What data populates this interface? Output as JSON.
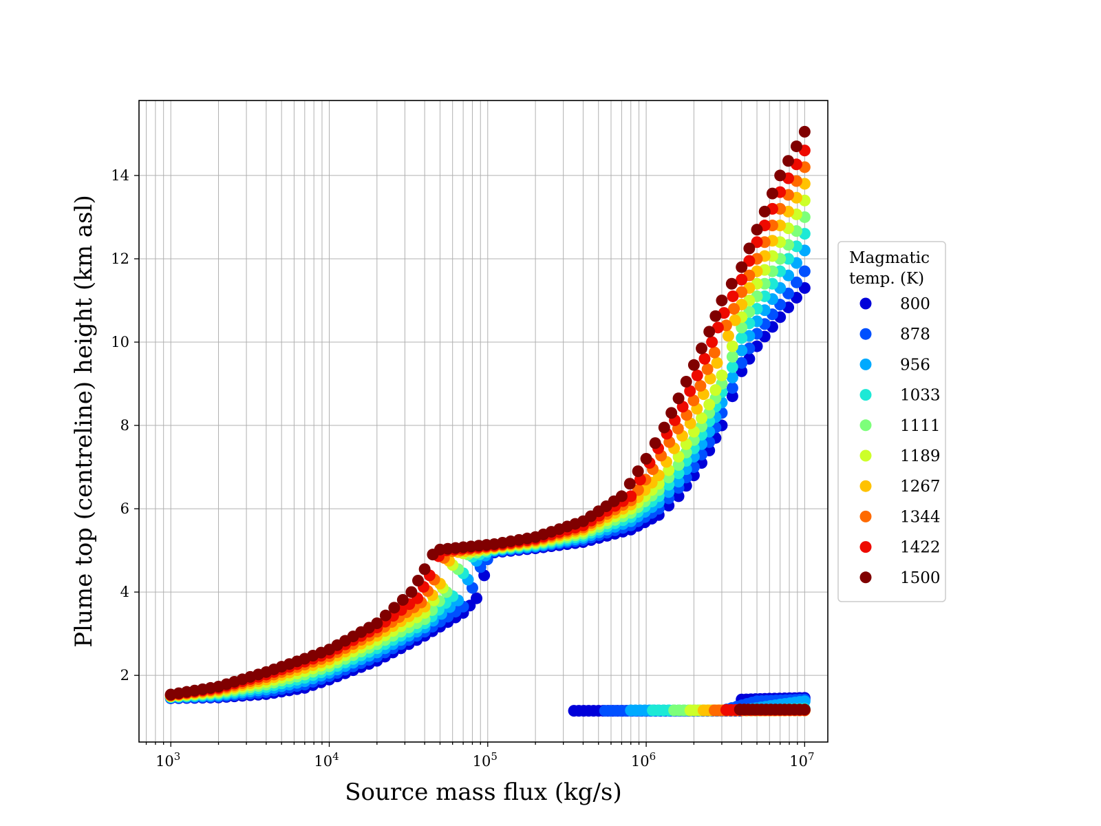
{
  "chart_data": {
    "type": "scatter",
    "title": "",
    "xlabel": "Source mass flux (kg/s)",
    "ylabel": "Plume top (centreline) height (km asl)",
    "xscale": "log",
    "xlim": [
      630,
      14000000
    ],
    "ylim": [
      0.4,
      15.8
    ],
    "xticks": [
      {
        "value": 1000,
        "base": "10",
        "exp": "3"
      },
      {
        "value": 10000,
        "base": "10",
        "exp": "4"
      },
      {
        "value": 100000,
        "base": "10",
        "exp": "5"
      },
      {
        "value": 1000000,
        "base": "10",
        "exp": "6"
      },
      {
        "value": 10000000,
        "base": "10",
        "exp": "7"
      }
    ],
    "yticks": [
      2,
      4,
      6,
      8,
      10,
      12,
      14
    ],
    "grid": true,
    "legend": {
      "title_lines": [
        "Magmatic",
        "temp. (K)"
      ],
      "placement": "outside-right"
    },
    "series": [
      {
        "name": "800",
        "color": "#0000d9",
        "x": [
          1000,
          2000,
          4000,
          7000,
          10000,
          20000,
          40000,
          70000,
          85000,
          95000,
          110000,
          200000,
          400000,
          800000,
          1200000,
          1600000,
          2000000,
          2500000,
          3000000,
          3500000,
          4000000,
          5000000,
          7000000,
          10000000
        ],
        "y": [
          1.45,
          1.47,
          1.55,
          1.7,
          1.9,
          2.35,
          2.95,
          3.5,
          3.85,
          4.4,
          4.95,
          5.05,
          5.2,
          5.5,
          5.85,
          6.3,
          6.8,
          7.4,
          8.0,
          8.7,
          9.3,
          9.9,
          10.6,
          11.3
        ]
      },
      {
        "name": "878",
        "color": "#0050ff",
        "x": [
          1000,
          2000,
          4000,
          7000,
          10000,
          20000,
          40000,
          70000,
          80000,
          90000,
          110000,
          200000,
          400000,
          800000,
          1200000,
          1600000,
          2000000,
          2500000,
          3000000,
          3500000,
          4000000,
          5000000,
          7000000,
          10000000
        ],
        "y": [
          1.46,
          1.49,
          1.6,
          1.78,
          1.98,
          2.45,
          3.05,
          3.65,
          4.1,
          4.6,
          4.97,
          5.08,
          5.25,
          5.6,
          6.0,
          6.5,
          7.0,
          7.6,
          8.3,
          8.9,
          9.5,
          10.2,
          10.9,
          11.7
        ]
      },
      {
        "name": "956",
        "color": "#00aaff",
        "x": [
          1000,
          2000,
          4000,
          7000,
          10000,
          20000,
          40000,
          65000,
          75000,
          85000,
          110000,
          200000,
          400000,
          800000,
          1200000,
          1600000,
          2000000,
          2500000,
          3000000,
          3500000,
          4000000,
          5000000,
          7000000,
          10000000
        ],
        "y": [
          1.47,
          1.52,
          1.66,
          1.86,
          2.06,
          2.55,
          3.15,
          3.8,
          4.3,
          4.75,
          5.0,
          5.1,
          5.3,
          5.7,
          6.15,
          6.65,
          7.25,
          7.85,
          8.55,
          9.15,
          9.8,
          10.5,
          11.3,
          12.2
        ]
      },
      {
        "name": "1033",
        "color": "#1de9d6",
        "x": [
          1000,
          2000,
          4000,
          7000,
          10000,
          20000,
          40000,
          60000,
          70000,
          80000,
          110000,
          200000,
          400000,
          800000,
          1200000,
          1600000,
          2000000,
          2500000,
          3000000,
          3500000,
          4000000,
          5000000,
          7000000,
          10000000
        ],
        "y": [
          1.48,
          1.55,
          1.72,
          1.94,
          2.14,
          2.65,
          3.25,
          3.9,
          4.45,
          4.85,
          5.02,
          5.13,
          5.35,
          5.8,
          6.3,
          6.85,
          7.45,
          8.1,
          8.8,
          9.4,
          10.1,
          10.8,
          11.7,
          12.6
        ]
      },
      {
        "name": "1111",
        "color": "#7dff7a",
        "x": [
          1000,
          2000,
          4000,
          7000,
          10000,
          20000,
          40000,
          55000,
          65000,
          75000,
          110000,
          200000,
          400000,
          800000,
          1200000,
          1600000,
          2000000,
          2500000,
          3000000,
          3500000,
          4000000,
          5000000,
          7000000,
          10000000
        ],
        "y": [
          1.49,
          1.58,
          1.78,
          2.02,
          2.22,
          2.75,
          3.35,
          4.0,
          4.55,
          4.9,
          5.04,
          5.16,
          5.4,
          5.9,
          6.45,
          7.05,
          7.65,
          8.3,
          9.0,
          9.65,
          10.35,
          11.1,
          12.0,
          13.0
        ]
      },
      {
        "name": "1189",
        "color": "#cdff29",
        "x": [
          1000,
          2000,
          4000,
          7000,
          10000,
          20000,
          40000,
          52000,
          60000,
          70000,
          110000,
          200000,
          400000,
          800000,
          1200000,
          1600000,
          2000000,
          2500000,
          3000000,
          3500000,
          4000000,
          5000000,
          7000000,
          10000000
        ],
        "y": [
          1.5,
          1.61,
          1.84,
          2.1,
          2.3,
          2.85,
          3.5,
          4.1,
          4.65,
          4.93,
          5.06,
          5.19,
          5.45,
          6.0,
          6.6,
          7.25,
          7.85,
          8.5,
          9.2,
          9.9,
          10.6,
          11.4,
          12.4,
          13.4
        ]
      },
      {
        "name": "1267",
        "color": "#ffc200",
        "x": [
          1000,
          2000,
          4000,
          7000,
          10000,
          20000,
          40000,
          50000,
          57000,
          65000,
          110000,
          200000,
          400000,
          800000,
          1200000,
          1500000,
          1900000,
          2300000,
          2800000,
          3300000,
          4000000,
          5000000,
          7000000,
          10000000
        ],
        "y": [
          1.51,
          1.64,
          1.9,
          2.18,
          2.38,
          2.95,
          3.65,
          4.2,
          4.75,
          4.96,
          5.08,
          5.22,
          5.5,
          6.1,
          6.8,
          7.45,
          8.05,
          8.75,
          9.5,
          10.15,
          10.9,
          11.7,
          12.8,
          13.8
        ]
      },
      {
        "name": "1344",
        "color": "#ff6a00",
        "x": [
          1000,
          2000,
          4000,
          7000,
          10000,
          20000,
          38000,
          46000,
          53000,
          60000,
          110000,
          200000,
          400000,
          800000,
          1100000,
          1400000,
          1800000,
          2200000,
          2700000,
          3200000,
          4000000,
          5000000,
          7000000,
          10000000
        ],
        "y": [
          1.52,
          1.67,
          1.96,
          2.26,
          2.46,
          3.05,
          3.75,
          4.3,
          4.82,
          4.98,
          5.1,
          5.25,
          5.55,
          6.2,
          6.95,
          7.6,
          8.25,
          8.95,
          9.75,
          10.4,
          11.2,
          12.0,
          13.2,
          14.2
        ]
      },
      {
        "name": "1422",
        "color": "#ee0a00",
        "x": [
          1000,
          2000,
          4000,
          7000,
          10000,
          20000,
          36000,
          43000,
          49000,
          55000,
          110000,
          200000,
          400000,
          800000,
          1050000,
          1350000,
          1700000,
          2100000,
          2600000,
          3100000,
          4000000,
          5000000,
          7000000,
          10000000
        ],
        "y": [
          1.53,
          1.7,
          2.02,
          2.33,
          2.54,
          3.15,
          3.85,
          4.4,
          4.86,
          5.0,
          5.12,
          5.28,
          5.6,
          6.3,
          7.1,
          7.8,
          8.45,
          9.2,
          10.0,
          10.7,
          11.5,
          12.4,
          13.6,
          14.6
        ]
      },
      {
        "name": "1500",
        "color": "#800000",
        "x": [
          1000,
          2000,
          4000,
          7000,
          10000,
          20000,
          33000,
          40000,
          45000,
          50000,
          110000,
          200000,
          400000,
          700000,
          1000000,
          1300000,
          1600000,
          2000000,
          2500000,
          3000000,
          4000000,
          5000000,
          7000000,
          10000000
        ],
        "y": [
          1.54,
          1.73,
          2.08,
          2.4,
          2.62,
          3.25,
          4.0,
          4.55,
          4.9,
          5.02,
          5.15,
          5.32,
          5.7,
          6.3,
          7.2,
          7.95,
          8.65,
          9.45,
          10.25,
          11.0,
          11.8,
          12.7,
          14.0,
          15.05
        ]
      }
    ],
    "lower_branch": [
      {
        "series": "800",
        "x": [
          350000,
          500000,
          1000000,
          2000000,
          3900000,
          4000000,
          6000000,
          10000000
        ],
        "y": [
          1.15,
          1.15,
          1.15,
          1.15,
          1.15,
          1.42,
          1.44,
          1.46
        ]
      },
      {
        "series": "878",
        "x": [
          550000,
          800000,
          1500000,
          3000000,
          5000000,
          10000000
        ],
        "y": [
          1.15,
          1.15,
          1.15,
          1.15,
          1.38,
          1.42
        ]
      },
      {
        "series": "956",
        "x": [
          800000,
          1200000,
          2000000,
          4000000,
          7000000,
          10000000
        ],
        "y": [
          1.16,
          1.16,
          1.16,
          1.16,
          1.3,
          1.38
        ]
      },
      {
        "series": "1033",
        "x": [
          1100000,
          1500000,
          2500000,
          5000000,
          10000000
        ],
        "y": [
          1.16,
          1.16,
          1.16,
          1.16,
          1.2
        ]
      },
      {
        "series": "1111",
        "x": [
          1500000,
          2000000,
          3000000,
          6000000,
          10000000
        ],
        "y": [
          1.16,
          1.16,
          1.16,
          1.16,
          1.16
        ]
      },
      {
        "series": "1189",
        "x": [
          1900000,
          2500000,
          4000000,
          7000000,
          10000000
        ],
        "y": [
          1.16,
          1.16,
          1.16,
          1.16,
          1.16
        ]
      },
      {
        "series": "1267",
        "x": [
          2300000,
          3000000,
          5000000,
          10000000
        ],
        "y": [
          1.16,
          1.16,
          1.16,
          1.16
        ]
      },
      {
        "series": "1344",
        "x": [
          2700000,
          3500000,
          6000000,
          10000000
        ],
        "y": [
          1.16,
          1.16,
          1.16,
          1.16
        ]
      },
      {
        "series": "1422",
        "x": [
          3200000,
          4200000,
          7000000,
          10000000
        ],
        "y": [
          1.17,
          1.17,
          1.17,
          1.17
        ]
      },
      {
        "series": "1500",
        "x": [
          3900000,
          5000000,
          8000000,
          10000000
        ],
        "y": [
          1.18,
          1.18,
          1.18,
          1.18
        ]
      }
    ]
  }
}
